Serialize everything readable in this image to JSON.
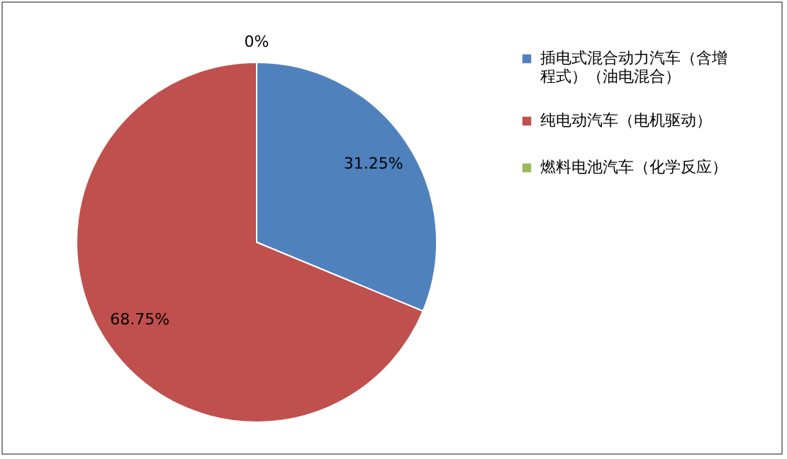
{
  "chart_data": {
    "type": "pie",
    "categories": [
      "插电式混合动力汽车（含增程式）（油电混合）",
      "纯电动汽车（电机驱动）",
      "燃料电池汽车（化学反应）"
    ],
    "values": [
      31.25,
      68.75,
      0
    ],
    "colors": [
      "#4f81bd",
      "#c0504d",
      "#9bbb59"
    ],
    "value_labels": [
      "31.25%",
      "68.75%",
      "0%"
    ],
    "legend": "right"
  }
}
